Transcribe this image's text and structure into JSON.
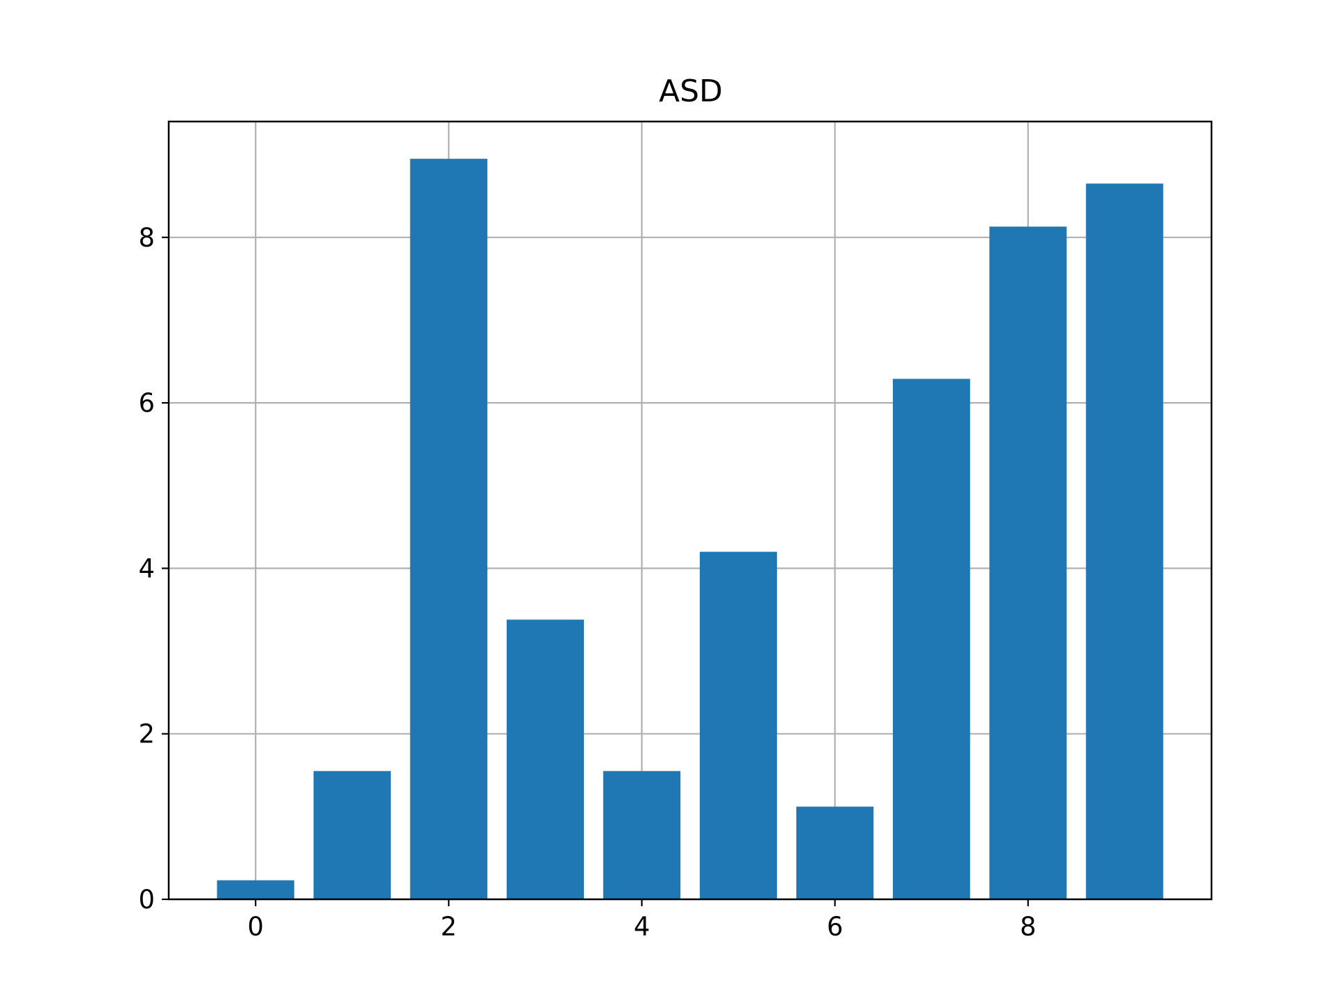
{
  "chart_data": {
    "type": "bar",
    "title": "ASD",
    "xlabel": "",
    "ylabel": "",
    "x": [
      0,
      1,
      2,
      3,
      4,
      5,
      6,
      7,
      8,
      9
    ],
    "values": [
      0.23,
      1.55,
      8.95,
      3.38,
      1.55,
      4.2,
      1.12,
      6.29,
      8.13,
      8.65
    ],
    "xlim": [
      -0.9,
      9.9
    ],
    "ylim": [
      0,
      9.4
    ],
    "xticks": [
      0,
      2,
      4,
      6,
      8
    ],
    "yticks": [
      0,
      2,
      4,
      6,
      8
    ],
    "bar_color": "#1f77b4",
    "grid": true,
    "grid_color": "#b0b0b0"
  }
}
